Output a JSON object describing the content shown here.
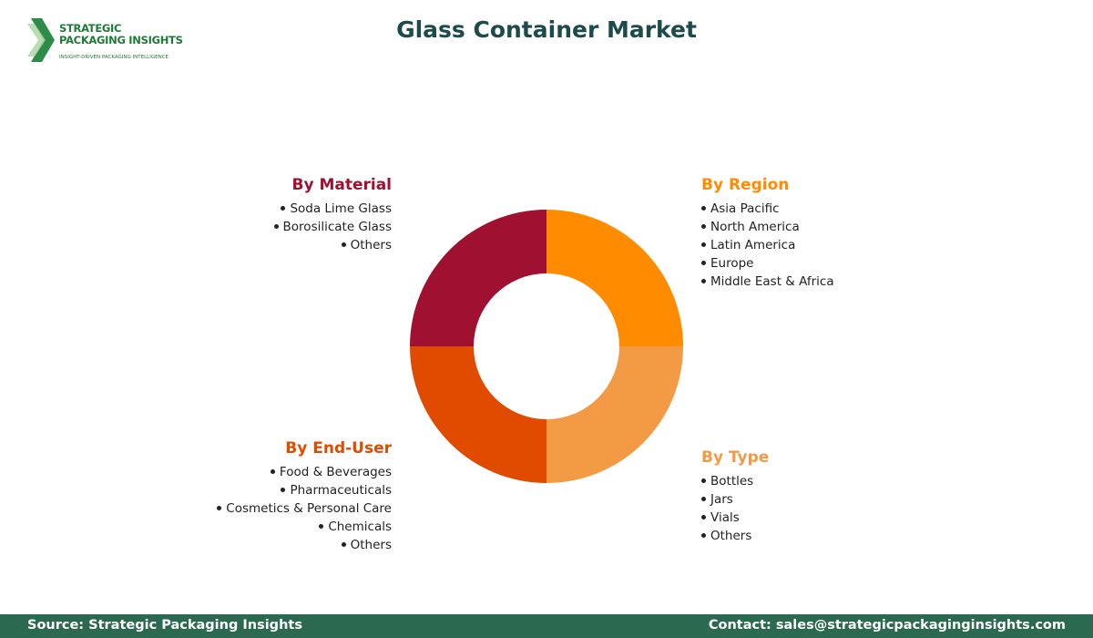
{
  "logo": {
    "line1": "STRATEGIC",
    "line2": "PACKAGING INSIGHTS",
    "tagline": "INSIGHT-DRIVEN PACKAGING INTELLIGENCE"
  },
  "title": "Glass Container Market",
  "segments": [
    {
      "heading": "By Material",
      "items": [
        "Soda Lime Glass",
        "Borosilicate Glass",
        "Others"
      ]
    },
    {
      "heading": "By Region",
      "items": [
        "Asia Pacific",
        "North America",
        "Latin America",
        "Europe",
        "Middle East & Africa"
      ]
    },
    {
      "heading": "By End-User",
      "items": [
        "Food & Beverages",
        "Pharmaceuticals",
        "Cosmetics & Personal Care",
        "Chemicals",
        "Others"
      ]
    },
    {
      "heading": "By Type",
      "items": [
        "Bottles",
        "Jars",
        "Vials",
        "Others"
      ]
    }
  ],
  "footer": {
    "source": "Source: Strategic Packaging Insights",
    "contact": "Contact: sales@strategicpackaginginsights.com"
  }
}
